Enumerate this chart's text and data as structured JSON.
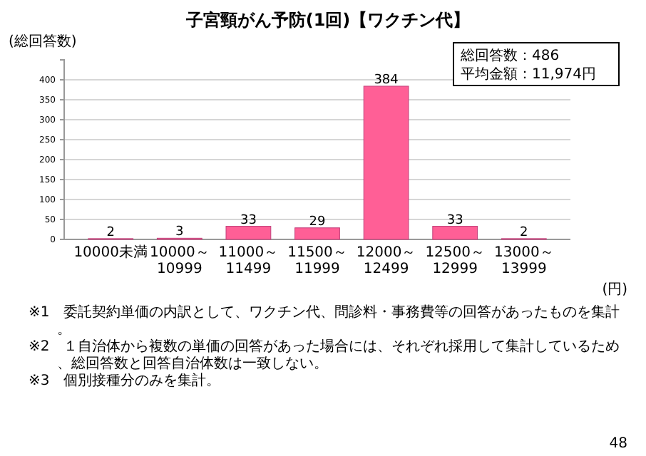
{
  "chart_data": {
    "type": "bar",
    "title": "子宮頸がん予防(1回)【ワクチン代】",
    "ylabel": "(総回答数)",
    "xlabel": "(円)",
    "categories": [
      "10000未満",
      "10000～10999",
      "11000～11499",
      "11500～11999",
      "12000～12499",
      "12500～12999",
      "13000～13999"
    ],
    "values": [
      2,
      3,
      33,
      29,
      384,
      33,
      2
    ],
    "color": "#ff5f96",
    "ylim": [
      0,
      450
    ],
    "yticks": [
      0,
      50,
      100,
      150,
      200,
      250,
      300,
      350,
      400
    ],
    "grid": "y",
    "data_labels": true,
    "annotations": [
      "総回答数：486",
      "平均金額：11,974円",
      "※1　委託契約単価の内訳として、ワクチン代、問診料・事務費等の回答があったものを集計。",
      "※2　１自治体から複数の単価の回答があった場合には、それぞれ採用して集計しているため、総回答数と回答自治体数は一致しない。",
      "※3　個別接種分のみを集計。",
      "48"
    ]
  }
}
